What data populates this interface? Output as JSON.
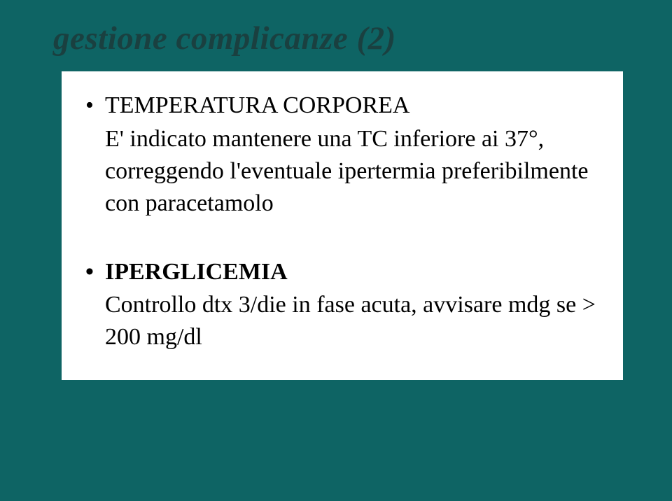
{
  "slide": {
    "background_color": "#0e6464",
    "title": "gestione complicanze (2)",
    "title_color": "#1a4040",
    "title_fontsize": 47,
    "content_box_bg": "#ffffff",
    "font_family": "Georgia, Times New Roman, serif",
    "items": [
      {
        "heading": "TEMPERATURA CORPOREA",
        "body": "E' indicato mantenere una TC inferiore ai 37°, correggendo l'eventuale ipertermia preferibilmente con paracetamolo"
      },
      {
        "heading": "IPERGLICEMIA",
        "body": "Controllo dtx 3/die in fase acuta, avvisare mdg se > 200 mg/dl"
      }
    ]
  }
}
